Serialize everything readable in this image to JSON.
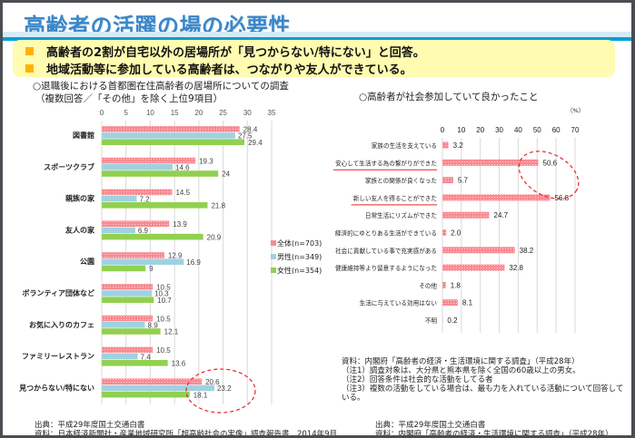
{
  "header": {
    "title": "高齢者の活躍の場の必要性",
    "bullets": [
      "高齢者の2割が自宅以外の居場所が「見つからない/特にない」と回答。",
      "地域活動等に参加している高齢者は、つながりや友人ができている。"
    ]
  },
  "colors": {
    "total": "#f98a92",
    "male": "#9fd2e0",
    "female": "#92d050",
    "highlight": "#e8232a",
    "title": "#3a86c8",
    "bullet": "#ffb300"
  },
  "left_panel": {
    "heading_line1": "○退職後における首都圏在住高齢者の居場所についての調査",
    "heading_line2": "（複数回答／「その他」を除く上位9項目）",
    "source_line1": "出典：平成29年度国土交通白書",
    "source_line2": "資料：日本経済新聞社・産業地域研究所「超高齢社会の実像」調査報告書　2014年9月"
  },
  "right_panel": {
    "heading": "○高齢者が社会参加していて良かったこと",
    "unit": "（%）",
    "notes": [
      "資料：内閣府「高齢者の経済・生活環境に関する調査」（平成28年）",
      "（注1）調査対象は、大分県と熊本県を除く全国の60歳以上の男女。",
      "（注2）回答条件は社会的な活動をしてる者",
      "（注3）複数の活動をしている場合は、最も力を入れている活動について回答して",
      "いる。"
    ],
    "source_line1": "出典：平成29年度国土交通白書",
    "source_line2": "資料：内閣府「高齢者の経済・生活環境に関する調査」（平成28年）"
  },
  "chart_data": [
    {
      "type": "bar",
      "orientation": "horizontal",
      "title": "退職後における首都圏在住高齢者の居場所についての調査",
      "categories": [
        "図書館",
        "スポーツクラブ",
        "親族の家",
        "友人の家",
        "公園",
        "ボランティア団体など",
        "お気に入りのカフェ",
        "ファミリーレストラン",
        "見つからない/特にない"
      ],
      "series": [
        {
          "name": "全体(n=703)",
          "key": "total",
          "values": [
            28.4,
            19.3,
            14.5,
            13.9,
            12.9,
            10.5,
            10.5,
            10.5,
            20.6
          ]
        },
        {
          "name": "男性(n=349)",
          "key": "male",
          "values": [
            27.5,
            14.6,
            7.2,
            6.9,
            16.9,
            10.3,
            8.9,
            7.4,
            23.2
          ]
        },
        {
          "name": "女性(n=354)",
          "key": "female",
          "values": [
            29.4,
            24,
            21.8,
            20.9,
            9,
            10.7,
            12.1,
            13.6,
            18.1
          ]
        }
      ],
      "xlim": [
        0,
        35
      ],
      "xticks": [
        0,
        5,
        10,
        15,
        20,
        25,
        30,
        35
      ],
      "grid": true,
      "legend": "right",
      "annotations": [
        "red dashed ellipse around 見つからない/特にない"
      ]
    },
    {
      "type": "bar",
      "orientation": "horizontal",
      "title": "高齢者が社会参加していて良かったこと",
      "unit": "%",
      "categories": [
        "家族の生活を支えている",
        "安心して生活する為の繋がりができた",
        "家族との関係が良くなった",
        "新しい友人を得ることができた",
        "日常生活にリズムができた",
        "経済的にゆとりある生活ができている",
        "社会に貢献している事で充実感がある",
        "健康維持等より留意するようになった",
        "その他",
        "生活に与えている効用はない",
        "不明"
      ],
      "values": [
        3.2,
        50.6,
        5.7,
        56.8,
        24.7,
        2.0,
        38.2,
        32.8,
        1.8,
        8.1,
        0.2
      ],
      "value_labels": [
        "3.2",
        "50.6",
        "5.7",
        "56.8",
        "24.7",
        "2.0",
        "38.2",
        "32.8",
        "1.8",
        "8.1",
        "0.2"
      ],
      "underlined": [
        1,
        3
      ],
      "xlim": [
        0,
        70
      ],
      "xticks": [
        0,
        10,
        20,
        30,
        40,
        50,
        60,
        70
      ],
      "grid": true,
      "annotations": [
        "red dashed ellipse around 50.6 and 56.8 bars"
      ]
    }
  ]
}
